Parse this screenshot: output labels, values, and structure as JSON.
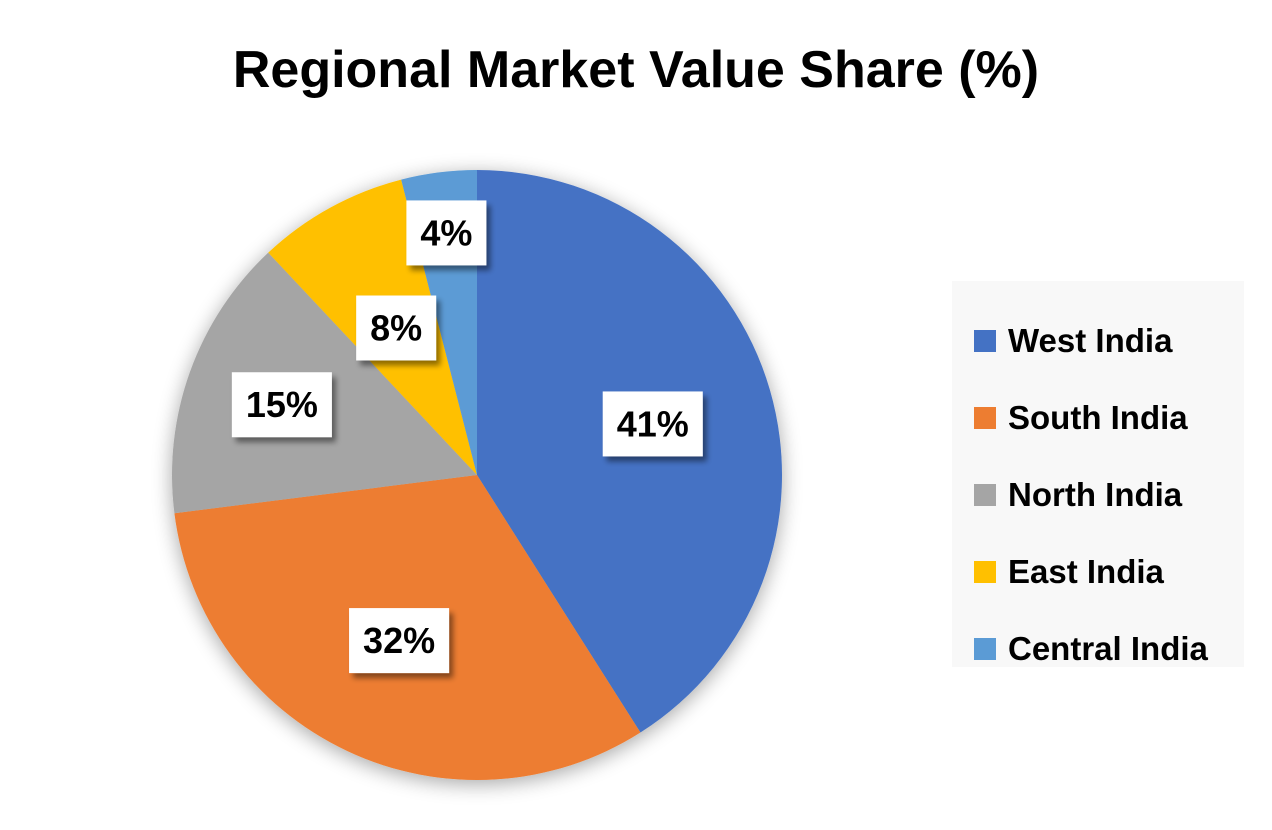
{
  "chart_data": {
    "type": "pie",
    "title": "Regional Market Value Share (%)",
    "categories": [
      "West India",
      "South India",
      "North India",
      "East India",
      "Central India"
    ],
    "values": [
      41,
      32,
      15,
      8,
      4
    ],
    "data_labels": [
      "41%",
      "32%",
      "15%",
      "8%",
      "4%"
    ],
    "colors": [
      "#4472C4",
      "#ED7D31",
      "#A5A5A5",
      "#FFC000",
      "#5B9BD5"
    ],
    "legend_position": "right",
    "start_angle": "12 o'clock",
    "direction": "clockwise"
  }
}
